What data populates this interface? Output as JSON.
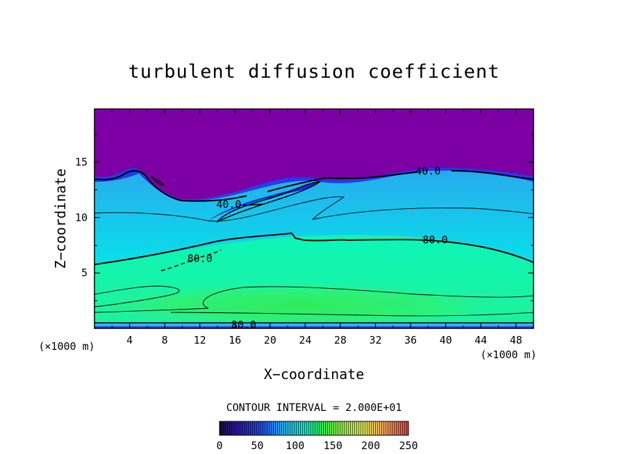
{
  "chart_data": {
    "type": "heatmap",
    "title": "turbulent diffusion coefficient",
    "xlabel": "X−coordinate",
    "ylabel": "Z−coordinate",
    "x_unit_left": "(×1000 m)",
    "x_unit_right": "(×1000 m)",
    "xlim": [
      0,
      50
    ],
    "ylim": [
      0,
      19.8
    ],
    "xticks": [
      "4",
      "8",
      "12",
      "16",
      "20",
      "24",
      "28",
      "32",
      "36",
      "40",
      "44",
      "48"
    ],
    "xtick_values": [
      4,
      8,
      12,
      16,
      20,
      24,
      28,
      32,
      36,
      40,
      44,
      48
    ],
    "yticks": [
      "5",
      "10",
      "15"
    ],
    "ytick_values": [
      5,
      10,
      15
    ],
    "contour_interval_text": "CONTOUR INTERVAL = 2.000E+01",
    "contour_labels": [
      {
        "text": "40.0",
        "x": 38.0,
        "y": 14.2
      },
      {
        "text": "40.0",
        "x": 15.3,
        "y": 11.2
      },
      {
        "text": "80.0",
        "x": 38.8,
        "y": 8.0
      },
      {
        "text": "80.0",
        "x": 12.0,
        "y": 6.3
      },
      {
        "text": "80.0",
        "x": 17.0,
        "y": 0.3
      }
    ],
    "colorbar": {
      "ticks": [
        "0",
        "50",
        "100",
        "150",
        "200",
        "250"
      ],
      "values": [
        0,
        50,
        100,
        150,
        200,
        250
      ],
      "range": [
        0,
        250
      ]
    }
  }
}
